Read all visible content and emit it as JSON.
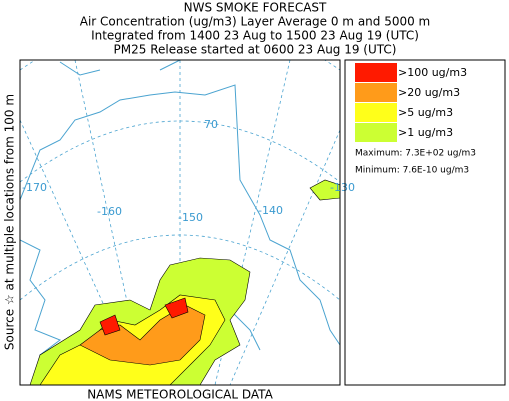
{
  "header": {
    "title": "NWS SMOKE FORECAST",
    "lines": [
      "Air Concentration (ug/m3) Layer Average    0 m and  5000 m",
      "Integrated from 1400 23 Aug to 1500 23 Aug 19 (UTC)",
      "PM25 Release started at 0600 23 Aug 19 (UTC)"
    ]
  },
  "side_label": "Source ☆ at multiple locations from  100 m",
  "footer": "NAMS METEOROLOGICAL DATA",
  "map": {
    "longitude_labels": [
      "-170",
      "-160",
      "-150",
      "-140",
      "-130"
    ],
    "latitude_labels": [
      "70"
    ]
  },
  "legend": {
    "items": [
      {
        "label": ">100 ug/m3",
        "color": "#ff1a00"
      },
      {
        "label": ">20 ug/m3",
        "color": "#ff9b1a"
      },
      {
        "label": ">5 ug/m3",
        "color": "#ffff1a"
      },
      {
        "label": ">1 ug/m3",
        "color": "#ccff33"
      }
    ],
    "maximum": "Maximum: 7.3E+02 ug/m3",
    "minimum": "Minimum: 7.6E-10 ug/m3"
  }
}
